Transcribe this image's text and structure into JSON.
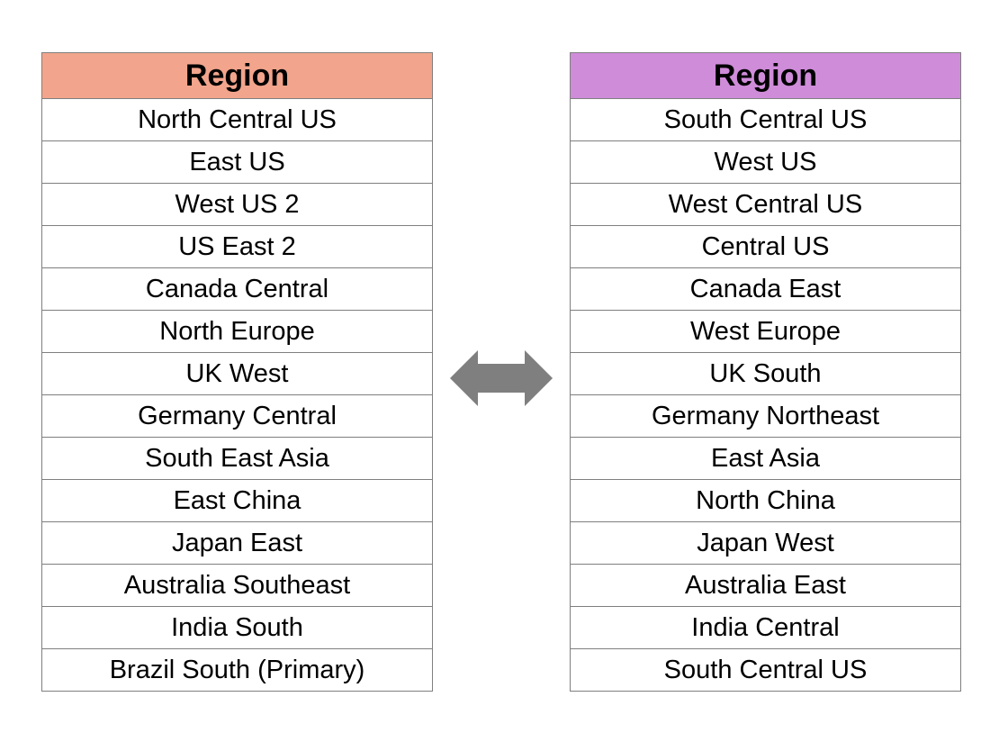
{
  "left_table": {
    "header": "Region",
    "header_color": "#f2a58c",
    "rows": [
      "North Central US",
      "East US",
      "West US 2",
      "US East 2",
      "Canada Central",
      "North Europe",
      "UK West",
      "Germany Central",
      "South East Asia",
      "East China",
      "Japan East",
      "Australia Southeast",
      "India South",
      "Brazil South (Primary)"
    ]
  },
  "right_table": {
    "header": "Region",
    "header_color": "#cf8cd9",
    "rows": [
      "South Central US",
      "West US",
      "West Central US",
      "Central US",
      "Canada East",
      "West Europe",
      "UK South",
      "Germany Northeast",
      "East Asia",
      "North China",
      "Japan West",
      "Australia East",
      "India Central",
      "South Central US"
    ]
  },
  "arrow": {
    "icon": "double-headed-arrow-icon",
    "color": "#7f7f7f"
  }
}
